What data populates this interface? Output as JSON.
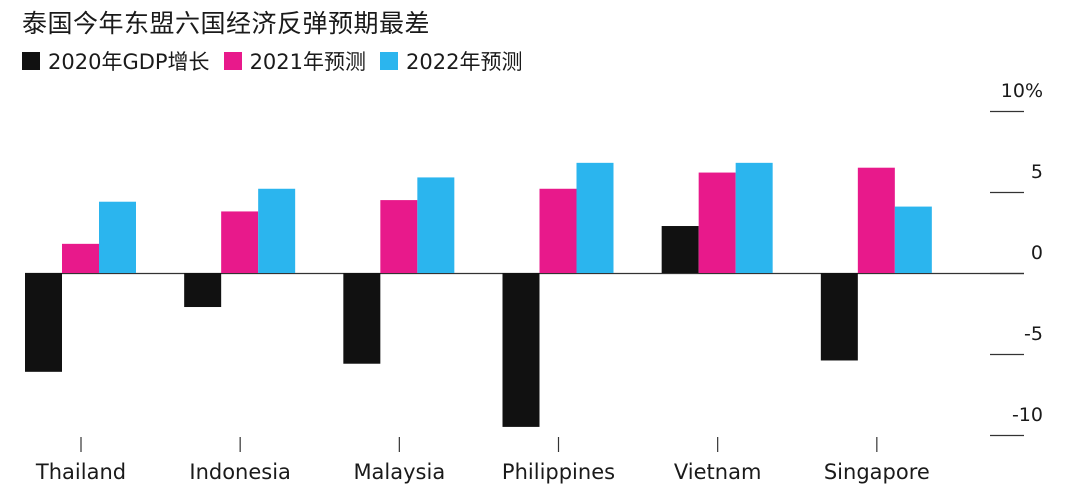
{
  "chart_data": {
    "type": "bar",
    "title": "泰国今年东盟六国经济反弹预期最差",
    "categories": [
      "Thailand",
      "Indonesia",
      "Malaysia",
      "Philippines",
      "Vietnam",
      "Singapore"
    ],
    "series": [
      {
        "name": "2020年GDP增长",
        "color": "#111111",
        "values": [
          -6.1,
          -2.1,
          -5.6,
          -9.5,
          2.9,
          -5.4
        ]
      },
      {
        "name": "2021年预测",
        "color": "#e8198b",
        "values": [
          1.8,
          3.8,
          4.5,
          5.2,
          6.2,
          6.5
        ]
      },
      {
        "name": "2022年预测",
        "color": "#2bb5ee",
        "values": [
          4.4,
          5.2,
          5.9,
          6.8,
          6.8,
          4.1
        ]
      }
    ],
    "yticks": [
      {
        "value": 10,
        "label": "10%"
      },
      {
        "value": 5,
        "label": "5"
      },
      {
        "value": 0,
        "label": "0"
      },
      {
        "value": -5,
        "label": "-5"
      },
      {
        "value": -10,
        "label": "-10"
      }
    ],
    "ylim": [
      -10.5,
      11
    ],
    "xlabel": "",
    "ylabel": "",
    "legend": "top-left",
    "axis_side": "right"
  }
}
